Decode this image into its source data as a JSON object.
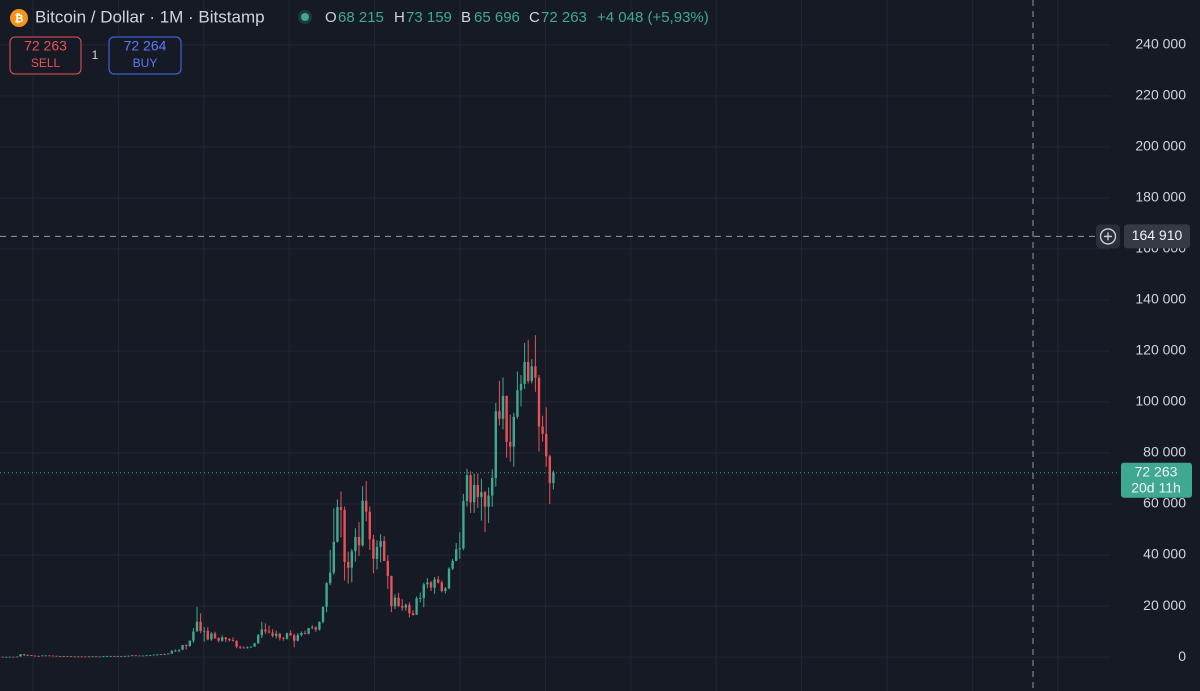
{
  "header": {
    "title": "Bitcoin / Dollar · 1M · Bitstamp",
    "ohlc": [
      {
        "key": "O",
        "value": "68 215"
      },
      {
        "key": "H",
        "value": "73 159"
      },
      {
        "key": "B",
        "value": "65 696"
      },
      {
        "key": "C",
        "value": "72 263"
      }
    ],
    "change": "+4 048 (+5,93%)"
  },
  "trade_buttons": {
    "sell_price": "72 263",
    "sell": "SELL",
    "quantity": "1",
    "buy_price": "72 264",
    "buy": "BUY"
  },
  "chart_data": {
    "type": "candlestick",
    "up_color": "#3fa98f",
    "down_color": "#e8515a",
    "grid": true,
    "ylim": [
      -13300,
      257600
    ],
    "yticks": [
      {
        "value": 0,
        "label": "0"
      },
      {
        "value": 20000,
        "label": "20 000"
      },
      {
        "value": 40000,
        "label": "40 000"
      },
      {
        "value": 60000,
        "label": "60 000"
      },
      {
        "value": 80000,
        "label": "80 000"
      },
      {
        "value": 100000,
        "label": "100 000"
      },
      {
        "value": 120000,
        "label": "120 000"
      },
      {
        "value": 140000,
        "label": "140 000"
      },
      {
        "value": 160000,
        "label": "160 000"
      },
      {
        "value": 180000,
        "label": "180 000"
      },
      {
        "value": 200000,
        "label": "200 000"
      },
      {
        "value": 220000,
        "label": "220 000"
      },
      {
        "value": 240000,
        "label": "240 000"
      }
    ],
    "candles": {
      "open": [
        129,
        97,
        106,
        135,
        133,
        204,
        1120,
        732,
        800,
        550,
        450,
        445,
        630,
        640,
        585,
        480,
        387,
        338,
        378,
        320,
        217,
        254,
        244,
        236,
        230,
        263,
        284,
        230,
        236,
        314,
        377,
        430,
        368,
        437,
        416,
        448,
        531,
        673,
        624,
        574,
        609,
        700,
        742,
        963,
        970,
        1190,
        1080,
        1350,
        2300,
        2480,
        2870,
        4700,
        4340,
        6450,
        10000,
        13860,
        10200,
        10300,
        6930,
        9240,
        7500,
        6400,
        7730,
        7030,
        6630,
        6370,
        4040,
        3740,
        3450,
        3820,
        4100,
        5320,
        8570,
        10820,
        10080,
        9600,
        8300,
        9150,
        7550,
        7200,
        9350,
        8530,
        6410,
        8630,
        9450,
        9140,
        11350,
        11650,
        10780,
        13800,
        19700,
        28990,
        33100,
        45200,
        58800,
        57700,
        37300,
        35040,
        41500,
        47100,
        43800,
        61300,
        57000,
        46200,
        38500,
        43200,
        45500,
        37700,
        31800,
        19900,
        23300,
        20000,
        19400,
        20500,
        17200,
        16550,
        23100,
        23150,
        28500,
        29250,
        27200,
        30450,
        29250,
        25950,
        26950,
        34650,
        37700,
        42250,
        42600,
        61150,
        71300,
        60650,
        67500,
        62700,
        64600,
        58950,
        63300,
        70200,
        96400,
        93400,
        102400,
        84350,
        82500,
        94200,
        104600,
        107100,
        115700,
        108200,
        114000,
        109500,
        90400,
        87500,
        78700,
        68215
      ],
      "high": [
        130,
        110,
        140,
        146,
        215,
        1163,
        1150,
        1020,
        830,
        680,
        540,
        630,
        680,
        650,
        600,
        490,
        415,
        450,
        380,
        320,
        265,
        300,
        260,
        248,
        270,
        315,
        285,
        245,
        335,
        495,
        465,
        465,
        445,
        440,
        465,
        550,
        780,
        680,
        625,
        610,
        720,
        755,
        980,
        1150,
        1210,
        1350,
        1500,
        2760,
        3000,
        2950,
        4750,
        4980,
        6450,
        11400,
        19700,
        17200,
        11800,
        11700,
        9750,
        9950,
        7760,
        8500,
        7730,
        7400,
        7680,
        6560,
        4400,
        4110,
        4200,
        4140,
        5630,
        9100,
        13880,
        13200,
        12320,
        10950,
        10400,
        9520,
        7800,
        9580,
        10500,
        9180,
        9460,
        10060,
        10430,
        11450,
        12470,
        12070,
        14000,
        19860,
        29300,
        41950,
        58350,
        61800,
        64900,
        59000,
        41300,
        42400,
        50500,
        52900,
        66990,
        69000,
        59050,
        47900,
        45800,
        48200,
        47400,
        39900,
        31900,
        24600,
        25200,
        22700,
        20950,
        21480,
        18380,
        23800,
        25250,
        29200,
        30950,
        29800,
        31400,
        31800,
        30050,
        27450,
        35200,
        38400,
        44700,
        48950,
        64000,
        73800,
        72800,
        71950,
        71950,
        70000,
        65100,
        66500,
        73600,
        99600,
        108300,
        109600,
        102500,
        95000,
        95800,
        111950,
        110500,
        123200,
        124400,
        116800,
        126200,
        110600,
        94600,
        97900,
        79300,
        73159
      ],
      "low": [
        88,
        65,
        98,
        122,
        102,
        202,
        456,
        710,
        410,
        450,
        360,
        420,
        530,
        565,
        450,
        365,
        275,
        320,
        305,
        170,
        211,
        235,
        218,
        228,
        220,
        252,
        200,
        227,
        236,
        310,
        350,
        350,
        365,
        400,
        415,
        445,
        525,
        475,
        535,
        590,
        605,
        695,
        740,
        750,
        915,
        890,
        1060,
        1320,
        2100,
        1830,
        2690,
        2970,
        4100,
        5550,
        10900,
        9400,
        6000,
        6600,
        6430,
        7050,
        5780,
        6060,
        5880,
        6100,
        6100,
        3480,
        3150,
        3350,
        3380,
        3680,
        4080,
        5330,
        7480,
        9080,
        9350,
        7730,
        7300,
        6530,
        6440,
        6860,
        8400,
        3850,
        6150,
        8130,
        8900,
        8970,
        10940,
        9880,
        10370,
        13190,
        17550,
        28200,
        32300,
        44900,
        47000,
        30000,
        28800,
        29300,
        37400,
        39600,
        43300,
        53250,
        42000,
        32900,
        34300,
        37150,
        37600,
        26700,
        17600,
        18800,
        19550,
        18150,
        18190,
        15500,
        16270,
        16500,
        21400,
        19570,
        26950,
        25850,
        24800,
        28850,
        25350,
        24950,
        26550,
        34100,
        37600,
        38500,
        41900,
        59000,
        56500,
        56550,
        58400,
        53500,
        49000,
        52550,
        58900,
        66800,
        90800,
        89250,
        78200,
        76600,
        74600,
        93400,
        98300,
        105150,
        107300,
        107300,
        104000,
        80600,
        84450,
        74600,
        60000,
        65696
      ],
      "close": [
        97,
        106,
        135,
        133,
        204,
        1120,
        732,
        800,
        550,
        450,
        445,
        630,
        640,
        585,
        480,
        387,
        338,
        378,
        320,
        217,
        254,
        244,
        236,
        230,
        263,
        284,
        230,
        236,
        314,
        377,
        430,
        368,
        437,
        416,
        448,
        531,
        673,
        624,
        574,
        609,
        700,
        742,
        963,
        970,
        1190,
        1080,
        1350,
        2300,
        2480,
        2870,
        4700,
        4340,
        6450,
        10000,
        13860,
        10200,
        10300,
        6930,
        9240,
        7500,
        6400,
        7730,
        7030,
        6630,
        6370,
        4040,
        3740,
        3450,
        3820,
        4100,
        5320,
        8570,
        10820,
        10080,
        9600,
        8300,
        9150,
        7550,
        7200,
        9350,
        8530,
        6410,
        8630,
        9450,
        9140,
        11350,
        11650,
        10780,
        13800,
        19700,
        28990,
        33100,
        45200,
        58800,
        57700,
        37300,
        35040,
        41500,
        47100,
        43800,
        61300,
        57000,
        46200,
        38500,
        43200,
        45500,
        37700,
        31800,
        19900,
        23300,
        20000,
        19400,
        20500,
        17200,
        16550,
        23100,
        23150,
        28500,
        29250,
        27200,
        30450,
        29250,
        25950,
        26950,
        34650,
        37700,
        42250,
        42600,
        61150,
        71300,
        60650,
        67500,
        62700,
        64600,
        58950,
        63300,
        70200,
        96400,
        93400,
        102400,
        84350,
        82500,
        94200,
        104600,
        107100,
        115700,
        108200,
        114000,
        109500,
        90400,
        87500,
        78700,
        68215,
        72263
      ]
    },
    "last_price": {
      "value": 72263,
      "label": "72 263",
      "countdown": "20d 11h"
    },
    "crosshair": {
      "value": 164910,
      "label": "164 910"
    }
  }
}
